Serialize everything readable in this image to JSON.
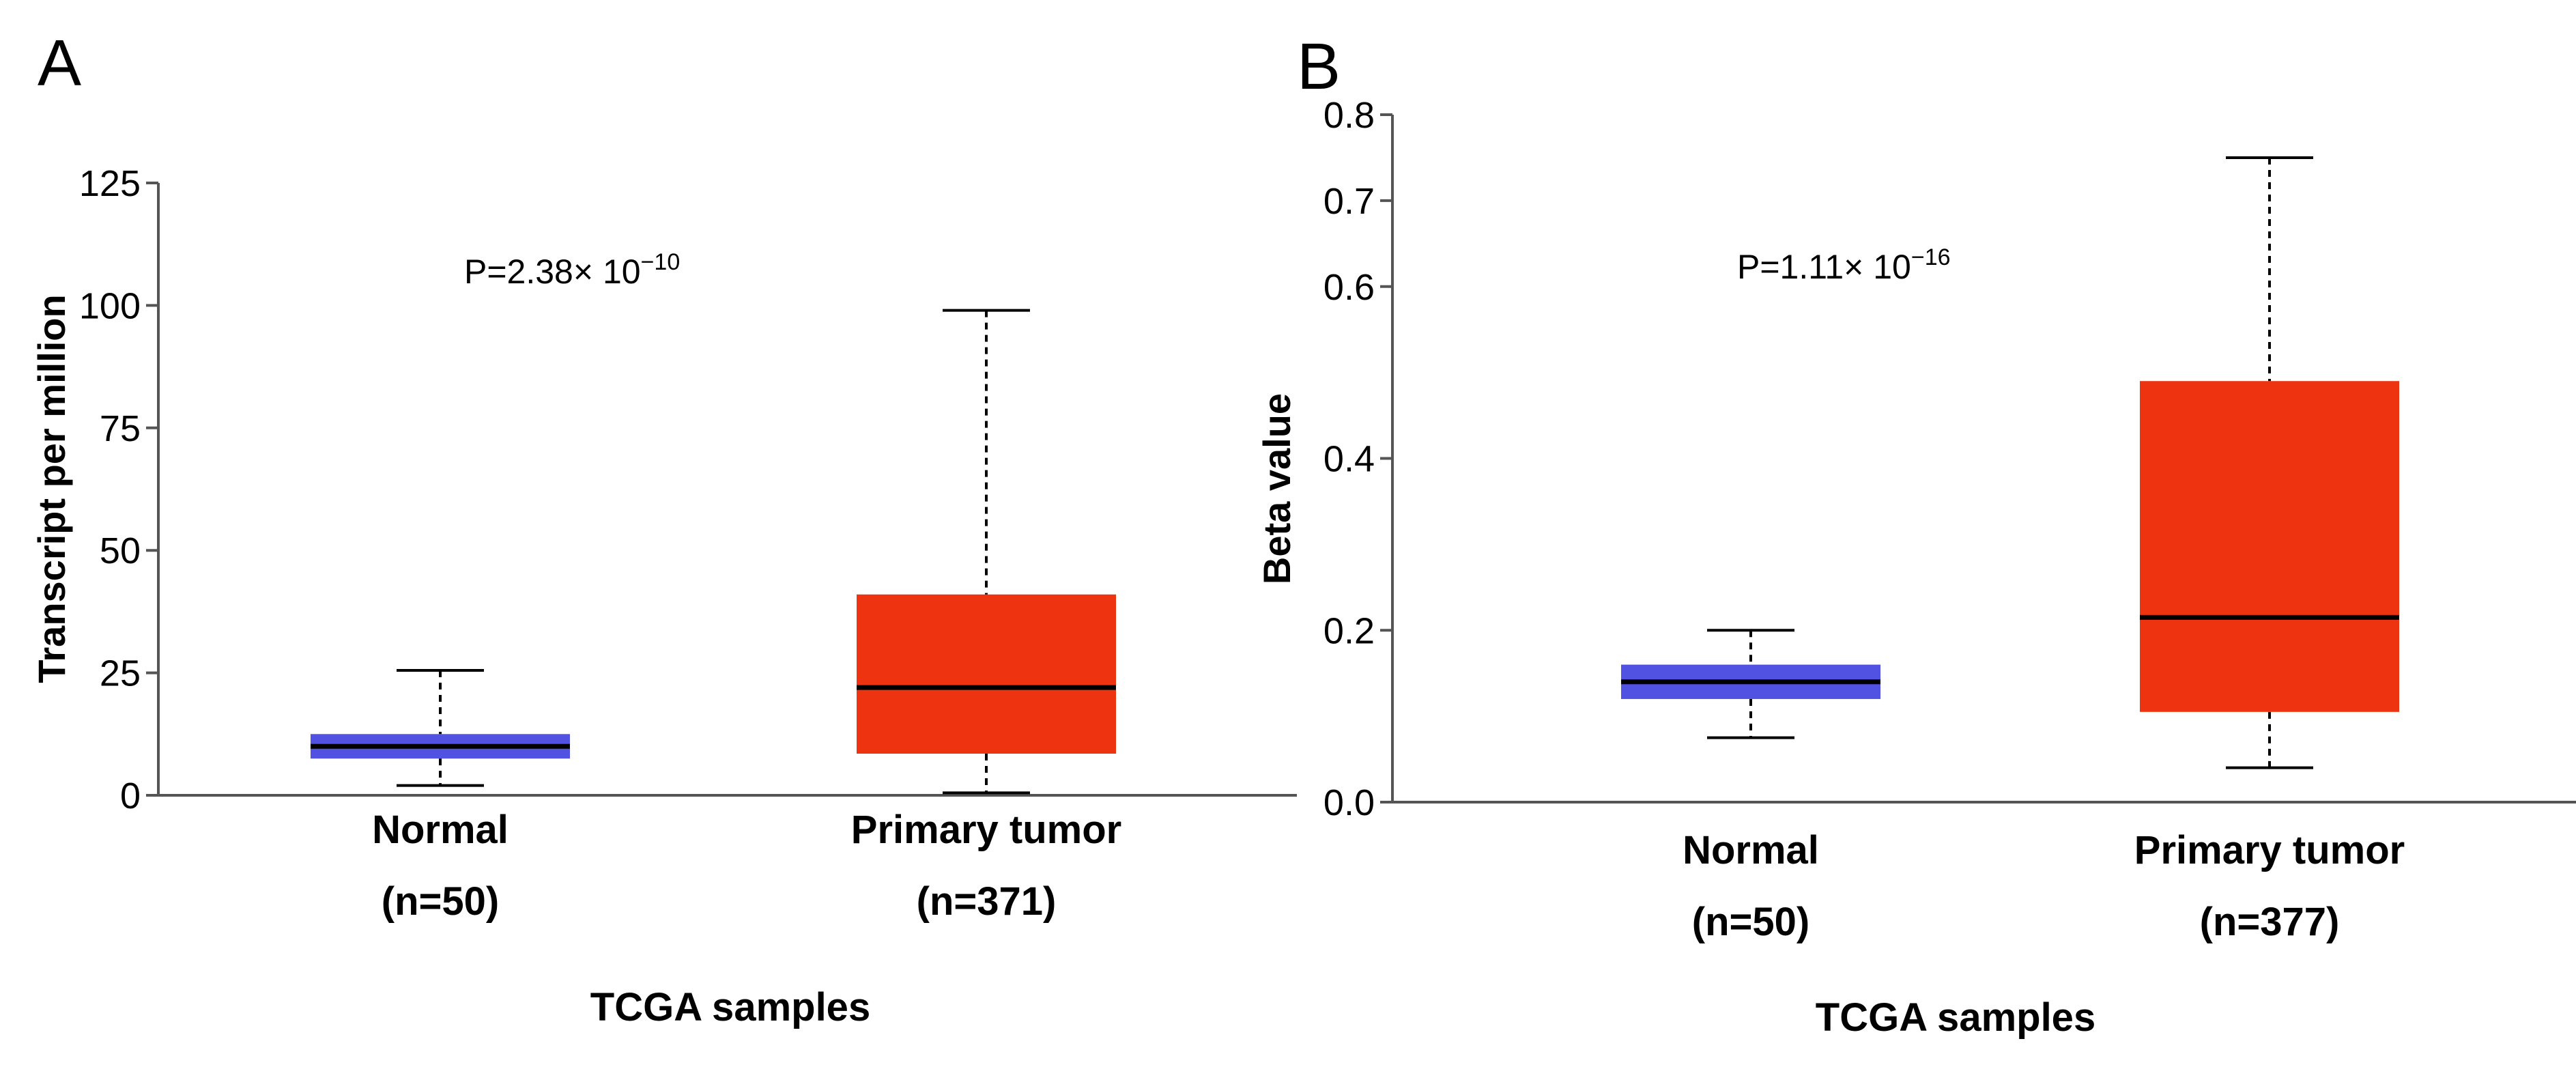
{
  "chart_data": [
    {
      "panel": "A",
      "type": "boxplot",
      "ylabel": "Transcript per million",
      "xlabel": "TCGA samples",
      "ylim": [
        0,
        125
      ],
      "yticks": [
        0,
        25,
        50,
        75,
        100,
        125
      ],
      "annotation": {
        "base": "P=2.38× 10",
        "exponent": "−10"
      },
      "groups": [
        {
          "name": "Normal",
          "n": "(n=50)",
          "color": "#3333dd",
          "min": 2,
          "q1": 7.5,
          "median": 10,
          "q3": 12.5,
          "max": 25.5
        },
        {
          "name": "Primary tumor",
          "n": "(n=371)",
          "color": "#ee3311",
          "min": 0.5,
          "q1": 8.5,
          "median": 22,
          "q3": 41,
          "max": 99
        }
      ]
    },
    {
      "panel": "B",
      "type": "boxplot",
      "ylabel": "Beta value",
      "xlabel": "TCGA samples",
      "ylim": [
        0,
        0.8
      ],
      "yticks": [
        0.0,
        0.2,
        0.4,
        0.6,
        0.7,
        0.8
      ],
      "ytick_labels": [
        "0.0",
        "0.2",
        "0.4",
        "0.6",
        "0.7",
        "0.8"
      ],
      "annotation": {
        "base": "P=1.11× 10",
        "exponent": "−16"
      },
      "groups": [
        {
          "name": "Normal",
          "n": "(n=50)",
          "color": "#3333dd",
          "min": 0.075,
          "q1": 0.12,
          "median": 0.14,
          "q3": 0.16,
          "max": 0.2
        },
        {
          "name": "Primary tumor",
          "n": "(n=377)",
          "color": "#ee3311",
          "min": 0.04,
          "q1": 0.105,
          "median": 0.215,
          "q3": 0.49,
          "max": 0.75
        }
      ]
    }
  ]
}
